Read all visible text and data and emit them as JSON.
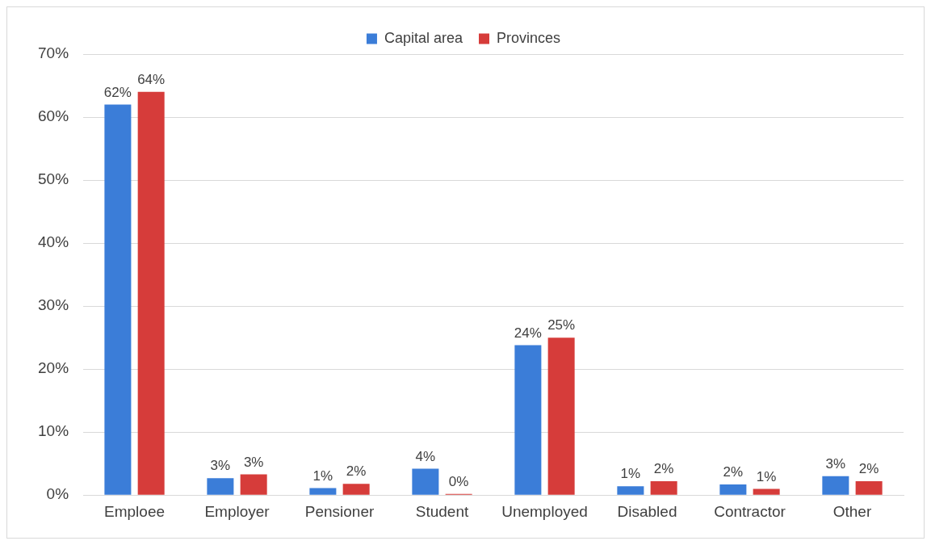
{
  "chart_data": {
    "type": "bar",
    "categories": [
      "Emploee",
      "Employer",
      "Pensioner",
      "Student",
      "Unemployed",
      "Disabled",
      "Contractor",
      "Other"
    ],
    "series": [
      {
        "name": "Capital area",
        "color": "#3b7dd8",
        "values": [
          62,
          2.7,
          1.1,
          4.2,
          23.8,
          1.4,
          1.7,
          3.0
        ],
        "value_labels": [
          "62%",
          "3%",
          "1%",
          "4%",
          "24%",
          "1%",
          "2%",
          "3%"
        ]
      },
      {
        "name": "Provinces",
        "color": "#d63c3a",
        "values": [
          64,
          3.3,
          1.8,
          0.2,
          25,
          2.2,
          1.0,
          2.2
        ],
        "value_labels": [
          "64%",
          "3%",
          "2%",
          "0%",
          "25%",
          "2%",
          "1%",
          "2%"
        ]
      }
    ],
    "ylim": [
      0,
      70
    ],
    "yticks": [
      {
        "value": 0,
        "label": "0%"
      },
      {
        "value": 10,
        "label": "10%"
      },
      {
        "value": 20,
        "label": "20%"
      },
      {
        "value": 30,
        "label": "30%"
      },
      {
        "value": 40,
        "label": "40%"
      },
      {
        "value": 50,
        "label": "50%"
      },
      {
        "value": 60,
        "label": "60%"
      },
      {
        "value": 70,
        "label": "70%"
      }
    ],
    "grid": "y",
    "legend": "top"
  }
}
